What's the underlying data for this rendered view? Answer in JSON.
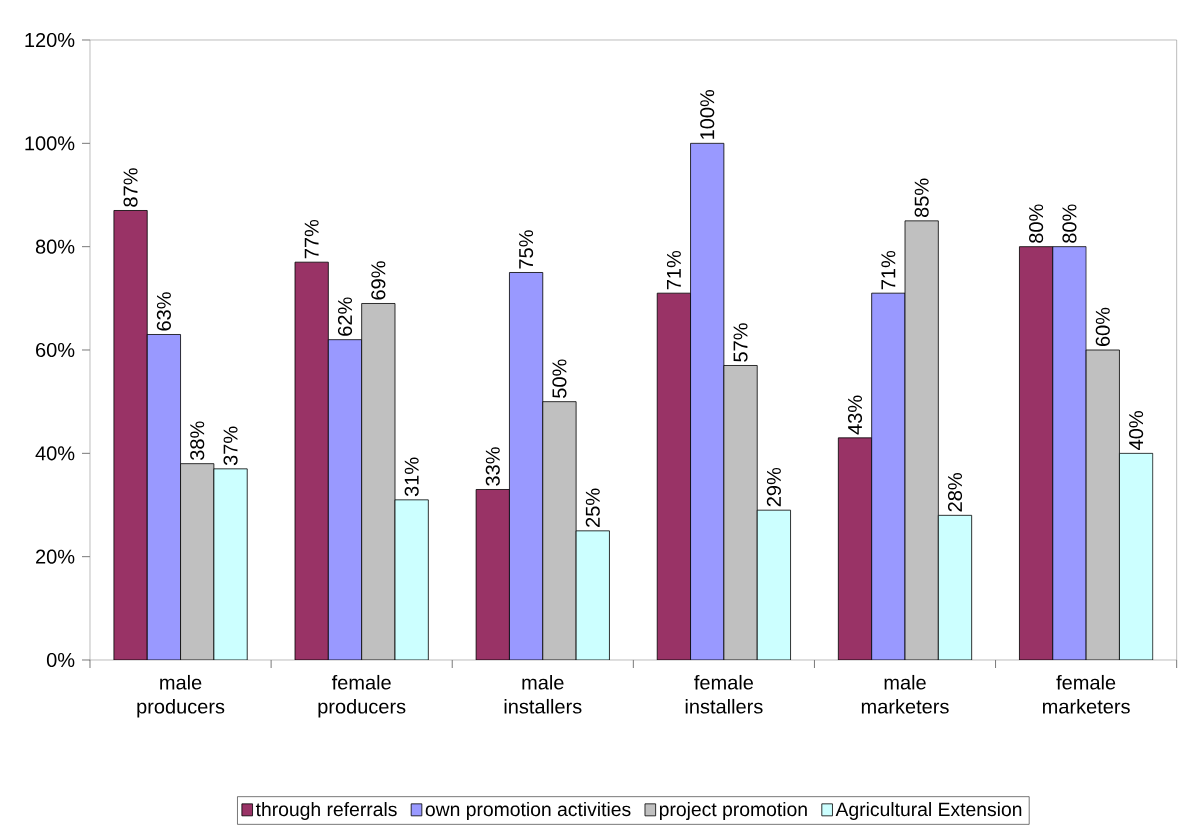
{
  "chart_data": {
    "type": "bar",
    "categories": [
      "male producers",
      "female producers",
      "male installers",
      "female installers",
      "male marketers",
      "female marketers"
    ],
    "series": [
      {
        "name": "through referrals",
        "color": "#993366",
        "values": [
          87,
          77,
          33,
          71,
          43,
          80
        ],
        "value_labels": [
          "87%",
          "77%",
          "33%",
          "71%",
          "43%",
          "80%"
        ]
      },
      {
        "name": "own promotion activities",
        "color": "#9999ff",
        "values": [
          63,
          62,
          75,
          100,
          71,
          80
        ],
        "value_labels": [
          "63%",
          "62%",
          "75%",
          "100%",
          "71%",
          "80%"
        ]
      },
      {
        "name": "project promotion",
        "color": "#c0c0c0",
        "values": [
          38,
          69,
          50,
          57,
          85,
          60
        ],
        "value_labels": [
          "38%",
          "69%",
          "50%",
          "57%",
          "85%",
          "60%"
        ]
      },
      {
        "name": "Agricultural Extension",
        "color": "#ccffff",
        "values": [
          37,
          31,
          25,
          29,
          28,
          40
        ],
        "value_labels": [
          "37%",
          "31%",
          "25%",
          "29%",
          "28%",
          "40%"
        ]
      }
    ],
    "ylim": [
      0,
      120
    ],
    "yticks": [
      {
        "value": 0,
        "label": "0%"
      },
      {
        "value": 20,
        "label": "20%"
      },
      {
        "value": 40,
        "label": "40%"
      },
      {
        "value": 60,
        "label": "60%"
      },
      {
        "value": 80,
        "label": "80%"
      },
      {
        "value": 100,
        "label": "100%"
      },
      {
        "value": 120,
        "label": "120%"
      }
    ],
    "legend": "bottom"
  }
}
